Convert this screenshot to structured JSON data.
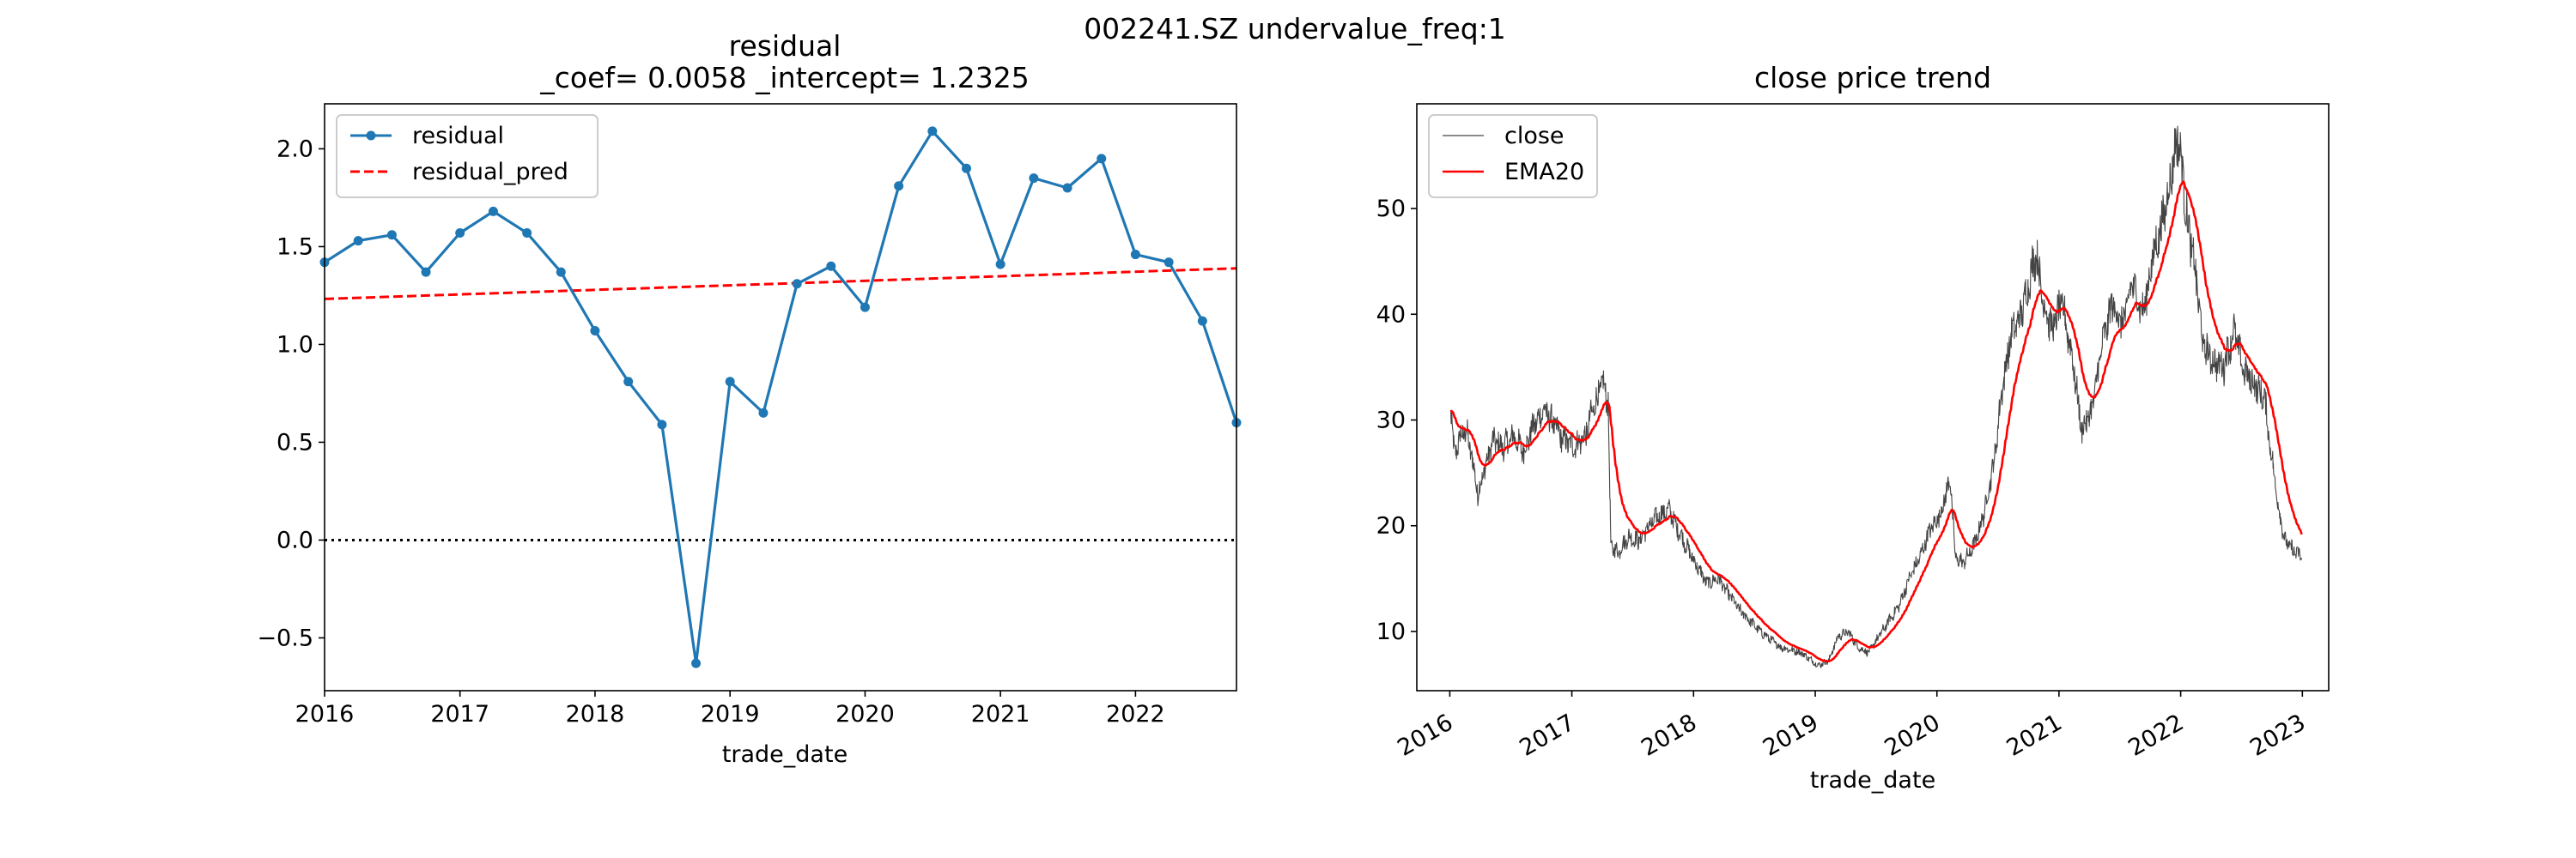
{
  "figure": {
    "suptitle": "002241.SZ undervalue_freq:1"
  },
  "chart_data": [
    {
      "type": "line",
      "title_line1": "residual",
      "title_line2": "_coef= 0.0058   _intercept= 1.2325",
      "xlabel": "trade_date",
      "ylabel": "",
      "xlim": [
        "2016-01-01",
        "2022-10-01"
      ],
      "ylim": [
        -0.77,
        2.23
      ],
      "x_ticks": [
        "2016",
        "2017",
        "2018",
        "2019",
        "2020",
        "2021",
        "2022"
      ],
      "y_ticks": [
        "−0.5",
        "0.0",
        "0.5",
        "1.0",
        "1.5",
        "2.0"
      ],
      "grid": false,
      "legend_position": "upper-left",
      "series": [
        {
          "name": "residual",
          "style": "line-markers",
          "color": "#1f77b4",
          "x": [
            "2016-01-01",
            "2016-04-01",
            "2016-07-01",
            "2016-10-01",
            "2017-01-01",
            "2017-04-01",
            "2017-07-01",
            "2017-10-01",
            "2018-01-01",
            "2018-04-01",
            "2018-07-01",
            "2018-10-01",
            "2019-01-01",
            "2019-04-01",
            "2019-07-01",
            "2019-10-01",
            "2020-01-01",
            "2020-04-01",
            "2020-07-01",
            "2020-10-01",
            "2021-01-01",
            "2021-04-01",
            "2021-07-01",
            "2021-10-01",
            "2022-01-01",
            "2022-04-01",
            "2022-07-01",
            "2022-10-01"
          ],
          "values": [
            1.42,
            1.53,
            1.56,
            1.37,
            1.57,
            1.68,
            1.57,
            1.37,
            1.07,
            0.81,
            0.59,
            -0.63,
            0.81,
            0.65,
            1.31,
            1.4,
            1.19,
            1.81,
            2.09,
            1.9,
            1.41,
            1.85,
            1.8,
            1.95,
            1.46,
            1.42,
            1.12,
            0.6
          ]
        },
        {
          "name": "residual_pred",
          "style": "dashed",
          "color": "#ff0000",
          "x": [
            "2016-01-01",
            "2022-10-01"
          ],
          "values": [
            1.2325,
            1.3891
          ]
        },
        {
          "name": "",
          "style": "dotted",
          "color": "#000000",
          "x": [
            "2016-01-01",
            "2022-10-01"
          ],
          "values": [
            0,
            0
          ]
        }
      ]
    },
    {
      "type": "line",
      "title": "close price trend",
      "xlabel": "trade_date",
      "ylabel": "",
      "xlim": [
        "2015-09-24",
        "2023-03-21"
      ],
      "ylim": [
        4.4,
        59.9
      ],
      "x_ticks": [
        "2016",
        "2017",
        "2018",
        "2019",
        "2020",
        "2021",
        "2022",
        "2023"
      ],
      "y_ticks": [
        "10",
        "20",
        "30",
        "40",
        "50"
      ],
      "grid": false,
      "legend_position": "upper-left",
      "series": [
        {
          "name": "close",
          "color": "#444444",
          "anchors": [
            [
              "2016-01-04",
              31.0
            ],
            [
              "2016-01-15",
              26.5
            ],
            [
              "2016-02-01",
              28.5
            ],
            [
              "2016-02-20",
              29.0
            ],
            [
              "2016-03-10",
              26.0
            ],
            [
              "2016-03-25",
              23.0
            ],
            [
              "2016-04-15",
              25.5
            ],
            [
              "2016-05-10",
              28.0
            ],
            [
              "2016-06-10",
              27.5
            ],
            [
              "2016-07-10",
              28.5
            ],
            [
              "2016-08-10",
              27.0
            ],
            [
              "2016-09-10",
              29.5
            ],
            [
              "2016-10-10",
              31.0
            ],
            [
              "2016-11-10",
              29.5
            ],
            [
              "2016-12-10",
              28.0
            ],
            [
              "2017-01-10",
              27.5
            ],
            [
              "2017-02-10",
              28.5
            ],
            [
              "2017-03-10",
              31.5
            ],
            [
              "2017-04-05",
              33.5
            ],
            [
              "2017-04-20",
              31.5
            ],
            [
              "2017-04-28",
              18.0
            ],
            [
              "2017-05-20",
              17.5
            ],
            [
              "2017-06-20",
              19.0
            ],
            [
              "2017-07-20",
              18.5
            ],
            [
              "2017-08-20",
              20.0
            ],
            [
              "2017-09-20",
              21.0
            ],
            [
              "2017-10-20",
              21.5
            ],
            [
              "2017-11-10",
              20.0
            ],
            [
              "2017-12-20",
              17.5
            ],
            [
              "2018-02-10",
              14.5
            ],
            [
              "2018-03-15",
              15.0
            ],
            [
              "2018-05-20",
              12.0
            ],
            [
              "2018-07-20",
              10.0
            ],
            [
              "2018-09-20",
              8.5
            ],
            [
              "2018-11-20",
              8.0
            ],
            [
              "2019-01-10",
              6.8
            ],
            [
              "2019-02-10",
              7.2
            ],
            [
              "2019-03-10",
              9.5
            ],
            [
              "2019-04-10",
              10.0
            ],
            [
              "2019-05-10",
              8.5
            ],
            [
              "2019-06-10",
              8.0
            ],
            [
              "2019-07-10",
              9.5
            ],
            [
              "2019-08-10",
              11.0
            ],
            [
              "2019-09-10",
              12.5
            ],
            [
              "2019-10-10",
              15.0
            ],
            [
              "2019-11-10",
              17.0
            ],
            [
              "2019-12-10",
              19.5
            ],
            [
              "2020-01-10",
              21.0
            ],
            [
              "2020-02-10",
              24.5
            ],
            [
              "2020-02-25",
              17.0
            ],
            [
              "2020-03-20",
              16.5
            ],
            [
              "2020-04-20",
              18.0
            ],
            [
              "2020-05-20",
              21.0
            ],
            [
              "2020-06-20",
              26.0
            ],
            [
              "2020-07-15",
              33.0
            ],
            [
              "2020-08-10",
              38.0
            ],
            [
              "2020-09-10",
              40.0
            ],
            [
              "2020-10-10",
              44.0
            ],
            [
              "2020-10-25",
              46.0
            ],
            [
              "2020-11-10",
              42.0
            ],
            [
              "2020-12-10",
              38.5
            ],
            [
              "2021-01-10",
              41.0
            ],
            [
              "2021-02-10",
              36.0
            ],
            [
              "2021-03-10",
              29.0
            ],
            [
              "2021-04-10",
              31.0
            ],
            [
              "2021-05-10",
              37.0
            ],
            [
              "2021-06-10",
              41.0
            ],
            [
              "2021-07-10",
              39.0
            ],
            [
              "2021-08-10",
              43.0
            ],
            [
              "2021-09-10",
              40.0
            ],
            [
              "2021-10-10",
              45.5
            ],
            [
              "2021-11-10",
              49.0
            ],
            [
              "2021-12-10",
              54.5
            ],
            [
              "2021-12-25",
              57.0
            ],
            [
              "2022-01-10",
              52.0
            ],
            [
              "2022-01-25",
              48.0
            ],
            [
              "2022-02-10",
              45.0
            ],
            [
              "2022-03-10",
              37.0
            ],
            [
              "2022-04-10",
              35.5
            ],
            [
              "2022-05-10",
              35.0
            ],
            [
              "2022-06-10",
              38.5
            ],
            [
              "2022-07-10",
              34.5
            ],
            [
              "2022-08-10",
              33.5
            ],
            [
              "2022-09-10",
              32.0
            ],
            [
              "2022-09-25",
              28.0
            ],
            [
              "2022-10-20",
              22.0
            ],
            [
              "2022-11-10",
              18.5
            ],
            [
              "2022-12-10",
              17.5
            ],
            [
              "2022-12-31",
              17.0
            ]
          ]
        },
        {
          "name": "EMA20",
          "color": "#ff0000",
          "smoothing_span": 20
        }
      ]
    }
  ]
}
